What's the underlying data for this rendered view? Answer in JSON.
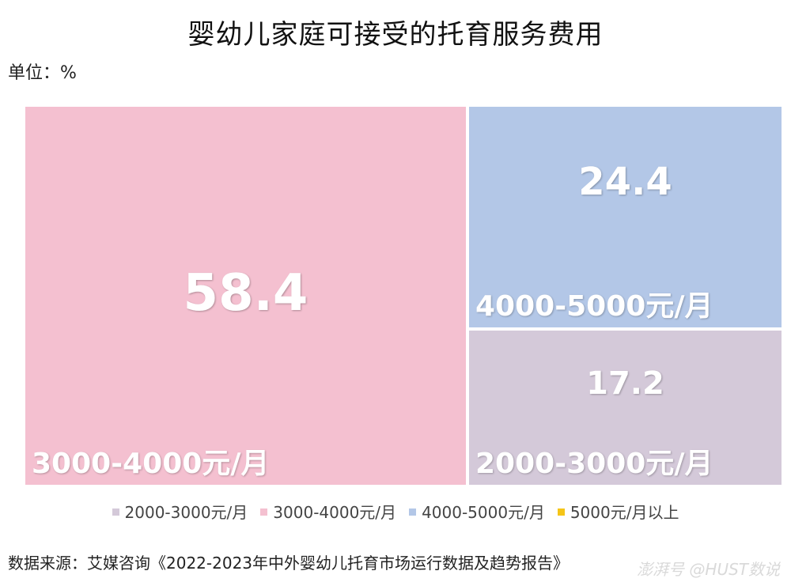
{
  "title": "婴幼儿家庭可接受的托育服务费用",
  "unit_label": "单位：%",
  "chart_data": {
    "type": "treemap",
    "title": "婴幼儿家庭可接受的托育服务费用",
    "unit": "%",
    "series": [
      {
        "name": "2000-3000元/月",
        "value": 17.2,
        "color": "#d4c9d9"
      },
      {
        "name": "3000-4000元/月",
        "value": 58.4,
        "color": "#f4c0d0"
      },
      {
        "name": "4000-5000元/月",
        "value": 24.4,
        "color": "#b3c7e7"
      },
      {
        "name": "5000元/月以上",
        "value": null,
        "color": "#f5c518"
      }
    ],
    "legend_position": "bottom"
  },
  "source": "数据来源：艾媒咨询《2022-2023年中外婴幼儿托育市场运行数据及趋势报告》",
  "watermark": "澎湃号 @HUST数说"
}
